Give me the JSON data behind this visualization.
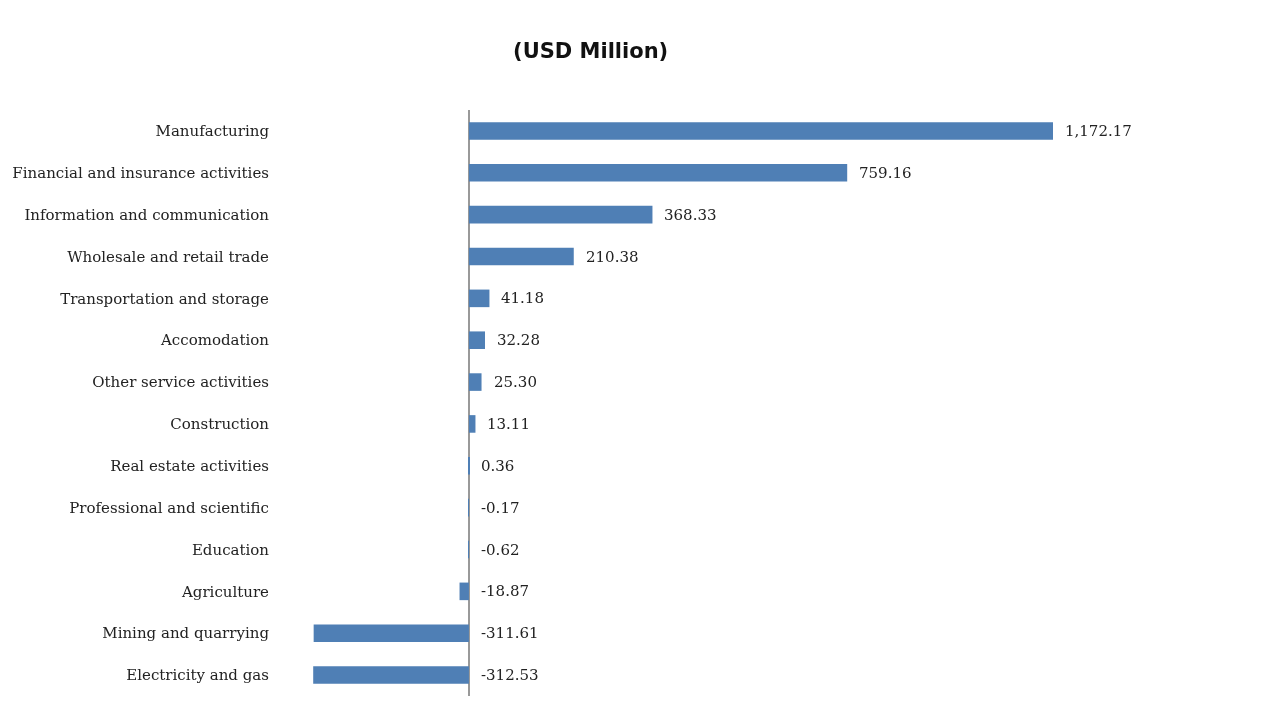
{
  "chart_data": {
    "type": "bar",
    "orientation": "horizontal",
    "title": "(USD Million)",
    "categories": [
      "Manufacturing",
      "Financial and insurance activities",
      "Information and communication",
      "Wholesale and retail trade",
      "Transportation and storage",
      "Accomodation",
      "Other service activities",
      "Construction",
      "Real estate activities",
      "Professional and scientific",
      "Education",
      "Agriculture",
      "Mining and quarrying",
      "Electricity and gas"
    ],
    "values": [
      1172.17,
      759.16,
      368.33,
      210.38,
      41.18,
      32.28,
      25.3,
      13.11,
      0.36,
      -0.17,
      -0.62,
      -18.87,
      -311.61,
      -312.53
    ],
    "value_labels": [
      "1,172.17",
      "759.16",
      "368.33",
      "210.38",
      "41.18",
      "32.28",
      "25.30",
      "13.11",
      "0.36",
      "-0.17",
      "-0.62",
      "-18.87",
      "-311.61",
      "-312.53"
    ],
    "color": "#4f7fb5",
    "grid": false,
    "legend": false
  }
}
